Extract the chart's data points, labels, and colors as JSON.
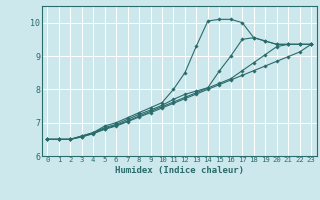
{
  "xlabel": "Humidex (Indice chaleur)",
  "ylabel": "",
  "bg_color": "#cce8ec",
  "line_color": "#2a6b6b",
  "grid_color": "#ffffff",
  "xlim": [
    -0.5,
    23.5
  ],
  "ylim": [
    6,
    10.5
  ],
  "xticks": [
    0,
    1,
    2,
    3,
    4,
    5,
    6,
    7,
    8,
    9,
    10,
    11,
    12,
    13,
    14,
    15,
    16,
    17,
    18,
    19,
    20,
    21,
    22,
    23
  ],
  "yticks": [
    6,
    7,
    8,
    9,
    10
  ],
  "curves": [
    {
      "x": [
        0,
        1,
        2,
        3,
        4,
        5,
        6,
        7,
        8,
        9,
        10,
        11,
        12,
        13,
        14,
        15,
        16,
        17,
        18,
        19,
        20,
        21,
        22,
        23
      ],
      "y": [
        6.5,
        6.5,
        6.5,
        6.6,
        6.7,
        6.9,
        7.0,
        7.15,
        7.3,
        7.45,
        7.6,
        8.0,
        8.5,
        9.3,
        10.05,
        10.1,
        10.1,
        10.0,
        9.55,
        9.45,
        9.35,
        9.35,
        9.35,
        9.35
      ]
    },
    {
      "x": [
        0,
        1,
        2,
        3,
        4,
        5,
        6,
        7,
        8,
        9,
        10,
        11,
        12,
        13,
        14,
        15,
        16,
        17,
        18,
        19,
        20,
        21,
        22,
        23
      ],
      "y": [
        6.5,
        6.5,
        6.5,
        6.6,
        6.7,
        6.85,
        6.95,
        7.1,
        7.25,
        7.38,
        7.52,
        7.7,
        7.85,
        7.95,
        8.05,
        8.55,
        9.0,
        9.5,
        9.55,
        9.45,
        9.35,
        9.35,
        9.35,
        9.35
      ]
    },
    {
      "x": [
        0,
        1,
        2,
        3,
        4,
        5,
        6,
        7,
        8,
        9,
        10,
        11,
        12,
        13,
        14,
        15,
        16,
        17,
        18,
        19,
        20,
        21,
        22,
        23
      ],
      "y": [
        6.5,
        6.5,
        6.5,
        6.58,
        6.68,
        6.82,
        6.92,
        7.05,
        7.2,
        7.34,
        7.48,
        7.62,
        7.76,
        7.9,
        8.04,
        8.18,
        8.32,
        8.56,
        8.8,
        9.04,
        9.28,
        9.35,
        9.35,
        9.35
      ]
    },
    {
      "x": [
        0,
        1,
        2,
        3,
        4,
        5,
        6,
        7,
        8,
        9,
        10,
        11,
        12,
        13,
        14,
        15,
        16,
        17,
        18,
        19,
        20,
        21,
        22,
        23
      ],
      "y": [
        6.5,
        6.5,
        6.5,
        6.57,
        6.67,
        6.8,
        6.9,
        7.03,
        7.17,
        7.3,
        7.44,
        7.58,
        7.72,
        7.86,
        8.0,
        8.14,
        8.28,
        8.42,
        8.56,
        8.7,
        8.84,
        8.98,
        9.12,
        9.35
      ]
    }
  ]
}
